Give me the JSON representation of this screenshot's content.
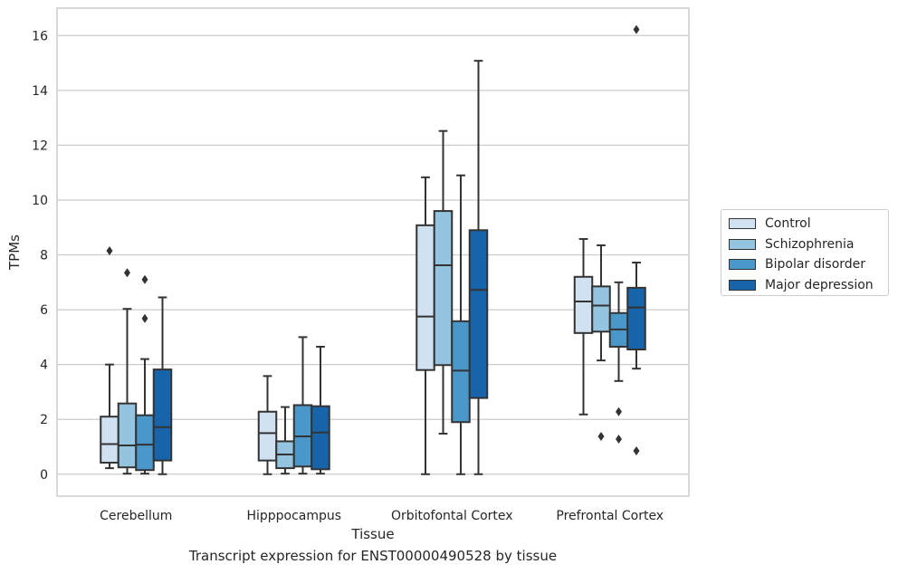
{
  "chart_data": {
    "type": "boxplot",
    "title": "Transcript expression for ENST00000490528 by tissue",
    "xlabel": "Tissue",
    "ylabel": "TPMs",
    "ylim": [
      -0.8,
      17
    ],
    "yticks": [
      0,
      2,
      4,
      6,
      8,
      10,
      12,
      14,
      16
    ],
    "grid": "horizontal",
    "legend_position": "right",
    "categories": [
      "Cerebellum",
      "Hipppocampus",
      "Orbitofontal Cortex",
      "Prefrontal Cortex"
    ],
    "series": [
      {
        "name": "Control",
        "color": "#d0e1f2",
        "boxes": [
          {
            "min": 0.22,
            "q1": 0.42,
            "median": 1.1,
            "q3": 2.1,
            "max": 4.0,
            "outliers": [
              8.15
            ]
          },
          {
            "min": 0.0,
            "q1": 0.5,
            "median": 1.5,
            "q3": 2.28,
            "max": 3.58,
            "outliers": []
          },
          {
            "min": 0.0,
            "q1": 3.8,
            "median": 5.75,
            "q3": 9.08,
            "max": 10.83,
            "outliers": []
          },
          {
            "min": 2.18,
            "q1": 5.15,
            "median": 6.3,
            "q3": 7.2,
            "max": 8.58,
            "outliers": []
          }
        ]
      },
      {
        "name": "Schizophrenia",
        "color": "#94c4df",
        "boxes": [
          {
            "min": 0.02,
            "q1": 0.25,
            "median": 1.05,
            "q3": 2.58,
            "max": 6.03,
            "outliers": [
              7.35
            ]
          },
          {
            "min": 0.02,
            "q1": 0.22,
            "median": 0.72,
            "q3": 1.2,
            "max": 2.45,
            "outliers": []
          },
          {
            "min": 1.48,
            "q1": 3.98,
            "median": 7.62,
            "q3": 9.6,
            "max": 12.52,
            "outliers": []
          },
          {
            "min": 4.15,
            "q1": 5.2,
            "median": 6.15,
            "q3": 6.85,
            "max": 8.35,
            "outliers": [
              1.38
            ]
          }
        ]
      },
      {
        "name": "Bipolar disorder",
        "color": "#4a98c9",
        "boxes": [
          {
            "min": 0.02,
            "q1": 0.15,
            "median": 1.08,
            "q3": 2.15,
            "max": 4.2,
            "outliers": [
              7.1,
              5.68
            ]
          },
          {
            "min": 0.02,
            "q1": 0.28,
            "median": 1.38,
            "q3": 2.52,
            "max": 5.0,
            "outliers": []
          },
          {
            "min": 0.0,
            "q1": 1.9,
            "median": 3.78,
            "q3": 5.58,
            "max": 10.9,
            "outliers": []
          },
          {
            "min": 3.4,
            "q1": 4.65,
            "median": 5.28,
            "q3": 5.88,
            "max": 7.0,
            "outliers": [
              2.28,
              1.28
            ]
          }
        ]
      },
      {
        "name": "Major depression",
        "color": "#1764ab",
        "boxes": [
          {
            "min": 0.0,
            "q1": 0.5,
            "median": 1.72,
            "q3": 3.82,
            "max": 6.45,
            "outliers": []
          },
          {
            "min": 0.02,
            "q1": 0.18,
            "median": 1.52,
            "q3": 2.48,
            "max": 4.65,
            "outliers": []
          },
          {
            "min": 0.0,
            "q1": 2.78,
            "median": 6.72,
            "q3": 8.9,
            "max": 15.08,
            "outliers": []
          },
          {
            "min": 3.85,
            "q1": 4.55,
            "median": 6.08,
            "q3": 6.8,
            "max": 7.72,
            "outliers": [
              16.22,
              0.85
            ]
          }
        ]
      }
    ]
  }
}
